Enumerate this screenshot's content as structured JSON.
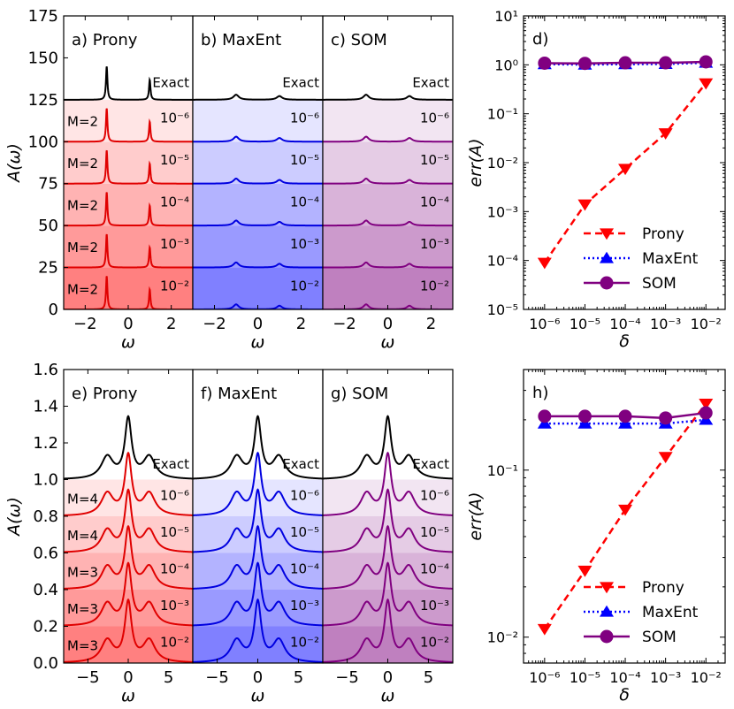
{
  "chart_data": [
    {
      "type": "line",
      "panel_label": "a)",
      "method": "Prony",
      "xlim": [
        -3,
        3
      ],
      "ylim": [
        0,
        175
      ],
      "xticks": [
        -2,
        0,
        2
      ],
      "xtick_labels": [
        "−2",
        "0",
        "2"
      ],
      "yticks": [
        0,
        25,
        50,
        75,
        100,
        125,
        150,
        175
      ],
      "ytick_labels": [
        "0",
        "25",
        "50",
        "75",
        "100",
        "125",
        "150",
        "175"
      ],
      "xlabel": "ω",
      "ylabel": "A(ω)",
      "exact_label": "Exact",
      "curve_color": "#e00000",
      "exact_color": "#000000",
      "fill_colors": [
        "#ff8080",
        "#ff9a9a",
        "#ffb3b3",
        "#ffcccc",
        "#ffe5e5"
      ],
      "peaks": {
        "centers": [
          -1,
          1
        ],
        "widths": [
          0.04,
          0.04
        ],
        "heights": [
          20,
          12
        ]
      },
      "rows": [
        {
          "offset": 0,
          "m_label": "M=2",
          "noise": "10⁻²"
        },
        {
          "offset": 25,
          "m_label": "M=2",
          "noise": "10⁻³"
        },
        {
          "offset": 50,
          "m_label": "M=2",
          "noise": "10⁻⁴"
        },
        {
          "offset": 75,
          "m_label": "M=2",
          "noise": "10⁻⁵"
        },
        {
          "offset": 100,
          "m_label": "M=2",
          "noise": "10⁻⁶"
        }
      ],
      "exact_offset": 125
    },
    {
      "type": "line",
      "panel_label": "b)",
      "method": "MaxEnt",
      "xlim": [
        -3,
        3
      ],
      "ylim": [
        0,
        175
      ],
      "xticks": [
        -2,
        0,
        2
      ],
      "xtick_labels": [
        "−2",
        "0",
        "2"
      ],
      "xlabel": "ω",
      "exact_label": "Exact",
      "curve_color": "#0000e0",
      "exact_color": "#000000",
      "fill_colors": [
        "#8080ff",
        "#9a9aff",
        "#b3b3ff",
        "#ccccff",
        "#e5e5ff"
      ],
      "peaks": {
        "centers": [
          -1,
          1
        ],
        "widths": [
          0.15,
          0.15
        ],
        "heights": [
          3,
          2.2
        ]
      },
      "rows": [
        {
          "offset": 0,
          "noise": "10⁻²"
        },
        {
          "offset": 25,
          "noise": "10⁻³"
        },
        {
          "offset": 50,
          "noise": "10⁻⁴"
        },
        {
          "offset": 75,
          "noise": "10⁻⁵"
        },
        {
          "offset": 100,
          "noise": "10⁻⁶"
        }
      ],
      "exact_offset": 125
    },
    {
      "type": "line",
      "panel_label": "c)",
      "method": "SOM",
      "xlim": [
        -3,
        3
      ],
      "ylim": [
        0,
        175
      ],
      "xticks": [
        -2,
        0,
        2
      ],
      "xtick_labels": [
        "−2",
        "0",
        "2"
      ],
      "xlabel": "ω",
      "exact_label": "Exact",
      "curve_color": "#800080",
      "exact_color": "#000000",
      "fill_colors": [
        "#bf80bf",
        "#cc9acc",
        "#d9b3d9",
        "#e5cce5",
        "#f2e5f2"
      ],
      "peaks": {
        "centers": [
          -1,
          1
        ],
        "widths": [
          0.15,
          0.15
        ],
        "heights": [
          3,
          2.2
        ]
      },
      "rows": [
        {
          "offset": 0,
          "noise": "10⁻²"
        },
        {
          "offset": 25,
          "noise": "10⁻³"
        },
        {
          "offset": 50,
          "noise": "10⁻⁴"
        },
        {
          "offset": 75,
          "noise": "10⁻⁵"
        },
        {
          "offset": 100,
          "noise": "10⁻⁶"
        }
      ],
      "exact_offset": 125
    },
    {
      "type": "line",
      "panel_label": "d)",
      "scale": "log-log",
      "x": [
        1e-06,
        1e-05,
        0.0001,
        0.001,
        0.01
      ],
      "xtick_labels": [
        "10⁻⁶",
        "10⁻⁵",
        "10⁻⁴",
        "10⁻³",
        "10⁻²"
      ],
      "xlim": [
        3e-07,
        0.03
      ],
      "ylim": [
        1e-05,
        10
      ],
      "yticks": [
        1e-05,
        0.0001,
        0.001,
        0.01,
        0.1,
        1,
        10
      ],
      "ytick_labels": [
        "10⁻⁵",
        "10⁻⁴",
        "10⁻³",
        "10⁻²",
        "10⁻¹",
        "10⁰",
        "10¹"
      ],
      "xlabel": "δ",
      "ylabel": "err(A)",
      "legend_position": "lower-right",
      "series": [
        {
          "name": "Prony",
          "values": [
            9e-05,
            0.0014,
            0.0075,
            0.04,
            0.42
          ],
          "color": "#ff0000",
          "dash": "8,5",
          "marker": "tri-down"
        },
        {
          "name": "MaxEnt",
          "values": [
            1.03,
            1.01,
            1.03,
            1.04,
            1.1
          ],
          "color": "#0000ff",
          "dash": "2,3",
          "marker": "tri-up"
        },
        {
          "name": "SOM",
          "values": [
            1.08,
            1.07,
            1.1,
            1.1,
            1.15
          ],
          "color": "#800080",
          "dash": "",
          "marker": "circle"
        }
      ]
    },
    {
      "type": "line",
      "panel_label": "e)",
      "method": "Prony",
      "xlim": [
        -8,
        8
      ],
      "ylim": [
        0,
        1.6
      ],
      "xticks": [
        -5,
        0,
        5
      ],
      "xtick_labels": [
        "−5",
        "0",
        "5"
      ],
      "yticks": [
        0,
        0.2,
        0.4,
        0.6,
        0.8,
        1.0,
        1.2,
        1.4,
        1.6
      ],
      "ytick_labels": [
        "0.0",
        "0.2",
        "0.4",
        "0.6",
        "0.8",
        "1.0",
        "1.2",
        "1.4",
        "1.6"
      ],
      "xlabel": "ω",
      "ylabel": "A(ω)",
      "exact_label": "Exact",
      "curve_color": "#e00000",
      "exact_color": "#000000",
      "fill_colors": [
        "#ff8080",
        "#ff9a9a",
        "#ffb3b3",
        "#ffcccc",
        "#ffe5e5"
      ],
      "peaks": {
        "centers": [
          -2.6,
          0,
          2.6
        ],
        "widths": [
          0.9,
          0.5,
          0.9
        ],
        "heights": [
          0.12,
          0.32,
          0.12
        ]
      },
      "rows": [
        {
          "offset": 0,
          "m_label": "M=3",
          "noise": "10⁻²"
        },
        {
          "offset": 0.2,
          "m_label": "M=3",
          "noise": "10⁻³"
        },
        {
          "offset": 0.4,
          "m_label": "M=3",
          "noise": "10⁻⁴"
        },
        {
          "offset": 0.6,
          "m_label": "M=4",
          "noise": "10⁻⁵"
        },
        {
          "offset": 0.8,
          "m_label": "M=4",
          "noise": "10⁻⁶"
        }
      ],
      "exact_offset": 1.0
    },
    {
      "type": "line",
      "panel_label": "f)",
      "method": "MaxEnt",
      "xlim": [
        -8,
        8
      ],
      "ylim": [
        0,
        1.6
      ],
      "xticks": [
        -5,
        0,
        5
      ],
      "xtick_labels": [
        "−5",
        "0",
        "5"
      ],
      "xlabel": "ω",
      "exact_label": "Exact",
      "curve_color": "#0000e0",
      "exact_color": "#000000",
      "fill_colors": [
        "#8080ff",
        "#9a9aff",
        "#b3b3ff",
        "#ccccff",
        "#e5e5ff"
      ],
      "peaks": {
        "centers": [
          -2.6,
          0,
          2.6
        ],
        "widths": [
          0.9,
          0.5,
          0.9
        ],
        "heights": [
          0.12,
          0.32,
          0.12
        ]
      },
      "rows": [
        {
          "offset": 0,
          "noise": "10⁻²"
        },
        {
          "offset": 0.2,
          "noise": "10⁻³"
        },
        {
          "offset": 0.4,
          "noise": "10⁻⁴"
        },
        {
          "offset": 0.6,
          "noise": "10⁻⁵"
        },
        {
          "offset": 0.8,
          "noise": "10⁻⁶"
        }
      ],
      "exact_offset": 1.0
    },
    {
      "type": "line",
      "panel_label": "g)",
      "method": "SOM",
      "xlim": [
        -8,
        8
      ],
      "ylim": [
        0,
        1.6
      ],
      "xticks": [
        -5,
        0,
        5
      ],
      "xtick_labels": [
        "−5",
        "0",
        "5"
      ],
      "xlabel": "ω",
      "exact_label": "Exact",
      "curve_color": "#800080",
      "exact_color": "#000000",
      "fill_colors": [
        "#bf80bf",
        "#cc9acc",
        "#d9b3d9",
        "#e5cce5",
        "#f2e5f2"
      ],
      "peaks": {
        "centers": [
          -2.6,
          0,
          2.6
        ],
        "widths": [
          0.9,
          0.5,
          0.9
        ],
        "heights": [
          0.12,
          0.32,
          0.12
        ]
      },
      "rows": [
        {
          "offset": 0,
          "noise": "10⁻²"
        },
        {
          "offset": 0.2,
          "noise": "10⁻³"
        },
        {
          "offset": 0.4,
          "noise": "10⁻⁴"
        },
        {
          "offset": 0.6,
          "noise": "10⁻⁵"
        },
        {
          "offset": 0.8,
          "noise": "10⁻⁶"
        }
      ],
      "exact_offset": 1.0
    },
    {
      "type": "line",
      "panel_label": "h)",
      "scale": "log-log",
      "x": [
        1e-06,
        1e-05,
        0.0001,
        0.001,
        0.01
      ],
      "xtick_labels": [
        "10⁻⁶",
        "10⁻⁵",
        "10⁻⁴",
        "10⁻³",
        "10⁻²"
      ],
      "xlim": [
        3e-07,
        0.03
      ],
      "ylim": [
        0.007,
        0.4
      ],
      "yticks": [
        0.01,
        0.1
      ],
      "ytick_labels": [
        "10⁻²",
        "10⁻¹"
      ],
      "xlabel": "δ",
      "ylabel": "err(A)",
      "legend_position": "lower-right",
      "series": [
        {
          "name": "Prony",
          "values": [
            0.0112,
            0.025,
            0.058,
            0.12,
            0.25
          ],
          "color": "#ff0000",
          "dash": "8,5",
          "marker": "tri-down"
        },
        {
          "name": "MaxEnt",
          "values": [
            0.19,
            0.19,
            0.19,
            0.19,
            0.2
          ],
          "color": "#0000ff",
          "dash": "2,3",
          "marker": "tri-up"
        },
        {
          "name": "SOM",
          "values": [
            0.21,
            0.21,
            0.21,
            0.205,
            0.22
          ],
          "color": "#800080",
          "dash": "",
          "marker": "circle"
        }
      ]
    }
  ]
}
